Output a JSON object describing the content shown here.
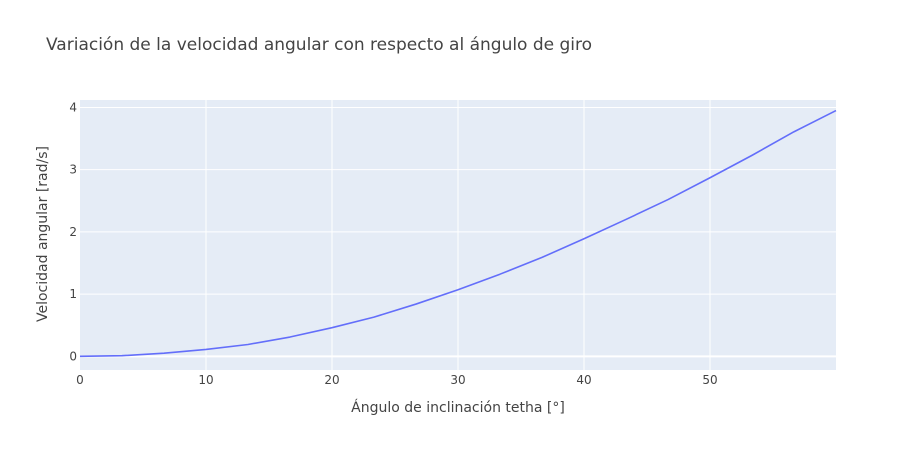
{
  "chart_data": {
    "type": "line",
    "title": "Variación de la velocidad angular con respecto al ángulo de giro",
    "xlabel": "Ángulo de inclinación tetha [°]",
    "ylabel": "Velocidad angular [rad/s]",
    "xlim": [
      0,
      60
    ],
    "ylim": [
      -0.22,
      4.12
    ],
    "xticks": [
      0,
      10,
      20,
      30,
      40,
      50
    ],
    "yticks": [
      0,
      1,
      2,
      3,
      4
    ],
    "xtick_labels": [
      "0",
      "10",
      "20",
      "30",
      "40",
      "50"
    ],
    "ytick_labels": [
      "0",
      "1",
      "2",
      "3",
      "4"
    ],
    "grid": true,
    "legend": "none",
    "colors": {
      "plot_bg": "#E5ECF6",
      "grid": "#FFFFFF",
      "line": "#636EFA",
      "text": "#444444"
    },
    "series": [
      {
        "x": [
          0,
          3.33,
          6.67,
          10,
          13.33,
          16.67,
          20,
          23.33,
          26.67,
          30,
          33.33,
          36.67,
          40,
          43.33,
          46.67,
          50,
          53.33,
          56.67,
          60
        ],
        "y": [
          0,
          0.01,
          0.05,
          0.11,
          0.19,
          0.31,
          0.46,
          0.63,
          0.84,
          1.07,
          1.32,
          1.59,
          1.89,
          2.2,
          2.52,
          2.87,
          3.23,
          3.61,
          3.95
        ]
      }
    ]
  }
}
